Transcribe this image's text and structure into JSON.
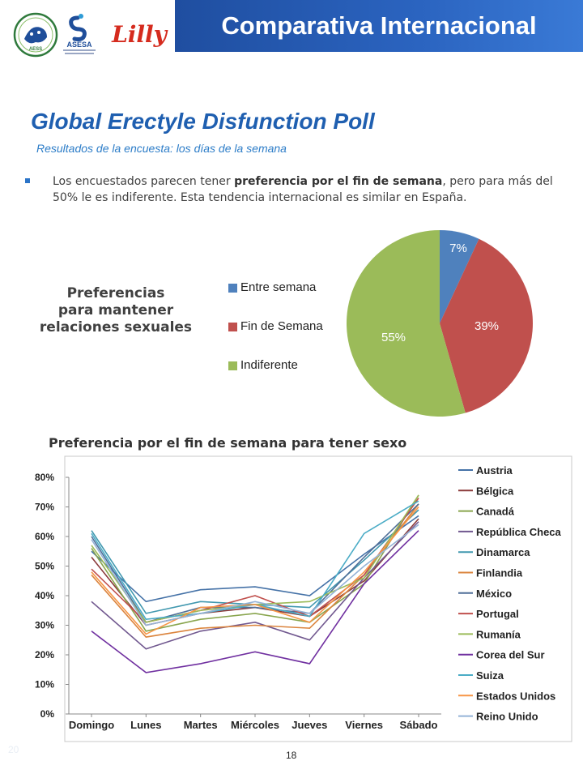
{
  "header": {
    "title": "Comparativa Internacional"
  },
  "logos": {
    "aess_text": "AESS",
    "asesa_text": "ASESA",
    "lilly_text": "Lilly"
  },
  "main_title": "Global Erectyle Disfunction Poll",
  "subtitle": "Resultados de la encuesta: los días de la semana",
  "bullet": {
    "part1": "Los encuestados parecen tener ",
    "bold": "preferencia por el fin de semana",
    "part2": ", pero para más del 50% le es indiferente. Esta tendencia internacional es similar en España."
  },
  "pref_label": {
    "line1": "Preferencias",
    "line2": "para mantener",
    "line3": "relaciones sexuales"
  },
  "line_title": "Preferencia por el fin de semana para tener sexo",
  "page_number": "18",
  "corner_number": "20",
  "chart_data": [
    {
      "type": "pie",
      "slices": [
        {
          "name": "Entre semana",
          "value": 7,
          "label": "7%",
          "color": "#4f81bd"
        },
        {
          "name": "Fin de Semana",
          "value": 39,
          "label": "39%",
          "color": "#c0504d"
        },
        {
          "name": "Indiferente",
          "value": 55,
          "label": "55%",
          "color": "#9bbb59"
        }
      ],
      "legend_position": "left"
    },
    {
      "type": "line",
      "categories": [
        "Domingo",
        "Lunes",
        "Martes",
        "Miércoles",
        "Jueves",
        "Viernes",
        "Sábado"
      ],
      "ylim": [
        0,
        80
      ],
      "yticks": [
        "0%",
        "10%",
        "20%",
        "30%",
        "40%",
        "50%",
        "60%",
        "70%",
        "80%"
      ],
      "grid": false,
      "legend_position": "right",
      "series": [
        {
          "name": "Austria",
          "color": "#4572a7",
          "values": [
            55,
            38,
            42,
            43,
            40,
            54,
            67
          ]
        },
        {
          "name": "Bélgica",
          "color": "#8b3a3a",
          "values": [
            53,
            30,
            34,
            36,
            33,
            45,
            66
          ]
        },
        {
          "name": "Canadá",
          "color": "#89a54e",
          "values": [
            56,
            28,
            32,
            34,
            31,
            44,
            74
          ]
        },
        {
          "name": "República Checa",
          "color": "#71588f",
          "values": [
            38,
            22,
            28,
            31,
            25,
            46,
            65
          ]
        },
        {
          "name": "Dinamarca",
          "color": "#4198af",
          "values": [
            62,
            34,
            38,
            37,
            36,
            52,
            69
          ]
        },
        {
          "name": "Finlandia",
          "color": "#db843d",
          "values": [
            47,
            26,
            29,
            30,
            29,
            47,
            71
          ]
        },
        {
          "name": "México",
          "color": "#4f6f98",
          "values": [
            60,
            31,
            36,
            36,
            34,
            53,
            71
          ]
        },
        {
          "name": "Portugal",
          "color": "#c0504d",
          "values": [
            49,
            31,
            35,
            40,
            33,
            47,
            73
          ]
        },
        {
          "name": "Rumanía",
          "color": "#9bbb59",
          "values": [
            57,
            31,
            35,
            37,
            38,
            46,
            74
          ]
        },
        {
          "name": "Corea del Sur",
          "color": "#7030a0",
          "values": [
            28,
            14,
            17,
            21,
            17,
            44,
            62
          ]
        },
        {
          "name": "Suiza",
          "color": "#4bacc6",
          "values": [
            61,
            32,
            34,
            37,
            33,
            61,
            72
          ]
        },
        {
          "name": "Estados Unidos",
          "color": "#f79646",
          "values": [
            48,
            27,
            36,
            37,
            31,
            48,
            70
          ]
        },
        {
          "name": "Reino Unido",
          "color": "#95b3d7",
          "values": [
            59,
            30,
            34,
            38,
            34,
            50,
            64
          ]
        }
      ]
    }
  ]
}
